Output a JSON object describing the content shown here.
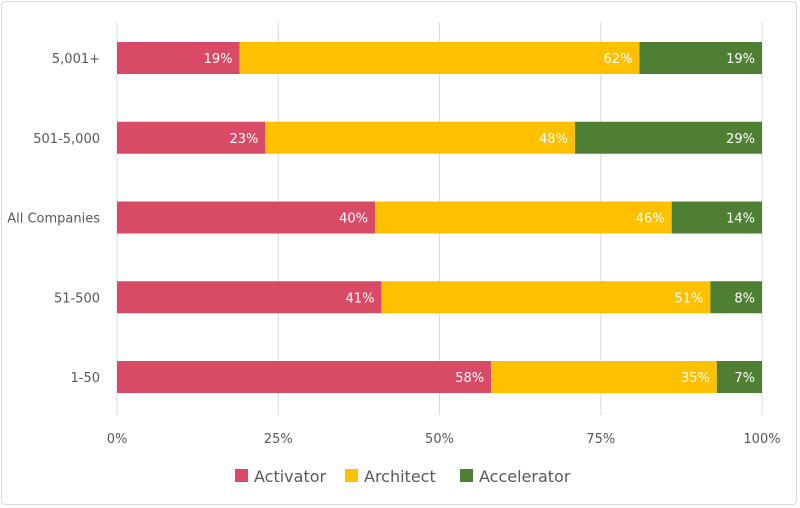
{
  "chart_data": {
    "type": "bar",
    "orientation": "horizontal",
    "stacked": true,
    "categories": [
      "5,001+",
      "501-5,000",
      "All Companies",
      "51-500",
      "1-50"
    ],
    "series": [
      {
        "name": "Activator",
        "color": "#D94A67",
        "values": [
          19,
          23,
          40,
          41,
          58
        ],
        "labels": [
          "19%",
          "23%",
          "40%",
          "41%",
          "58%"
        ]
      },
      {
        "name": "Architect",
        "color": "#FFC000",
        "values": [
          62,
          48,
          46,
          51,
          35
        ],
        "labels": [
          "62%",
          "48%",
          "46%",
          "51%",
          "35%"
        ]
      },
      {
        "name": "Accelerator",
        "color": "#4E7F33",
        "values": [
          19,
          29,
          14,
          8,
          7
        ],
        "labels": [
          "19%",
          "29%",
          "14%",
          "8%",
          "7%"
        ]
      }
    ],
    "xlim": [
      0,
      100
    ],
    "xticks": [
      "0%",
      "25%",
      "50%",
      "75%",
      "100%"
    ],
    "grid": true,
    "legend": "bottom",
    "title": "",
    "xlabel": "",
    "ylabel": ""
  }
}
